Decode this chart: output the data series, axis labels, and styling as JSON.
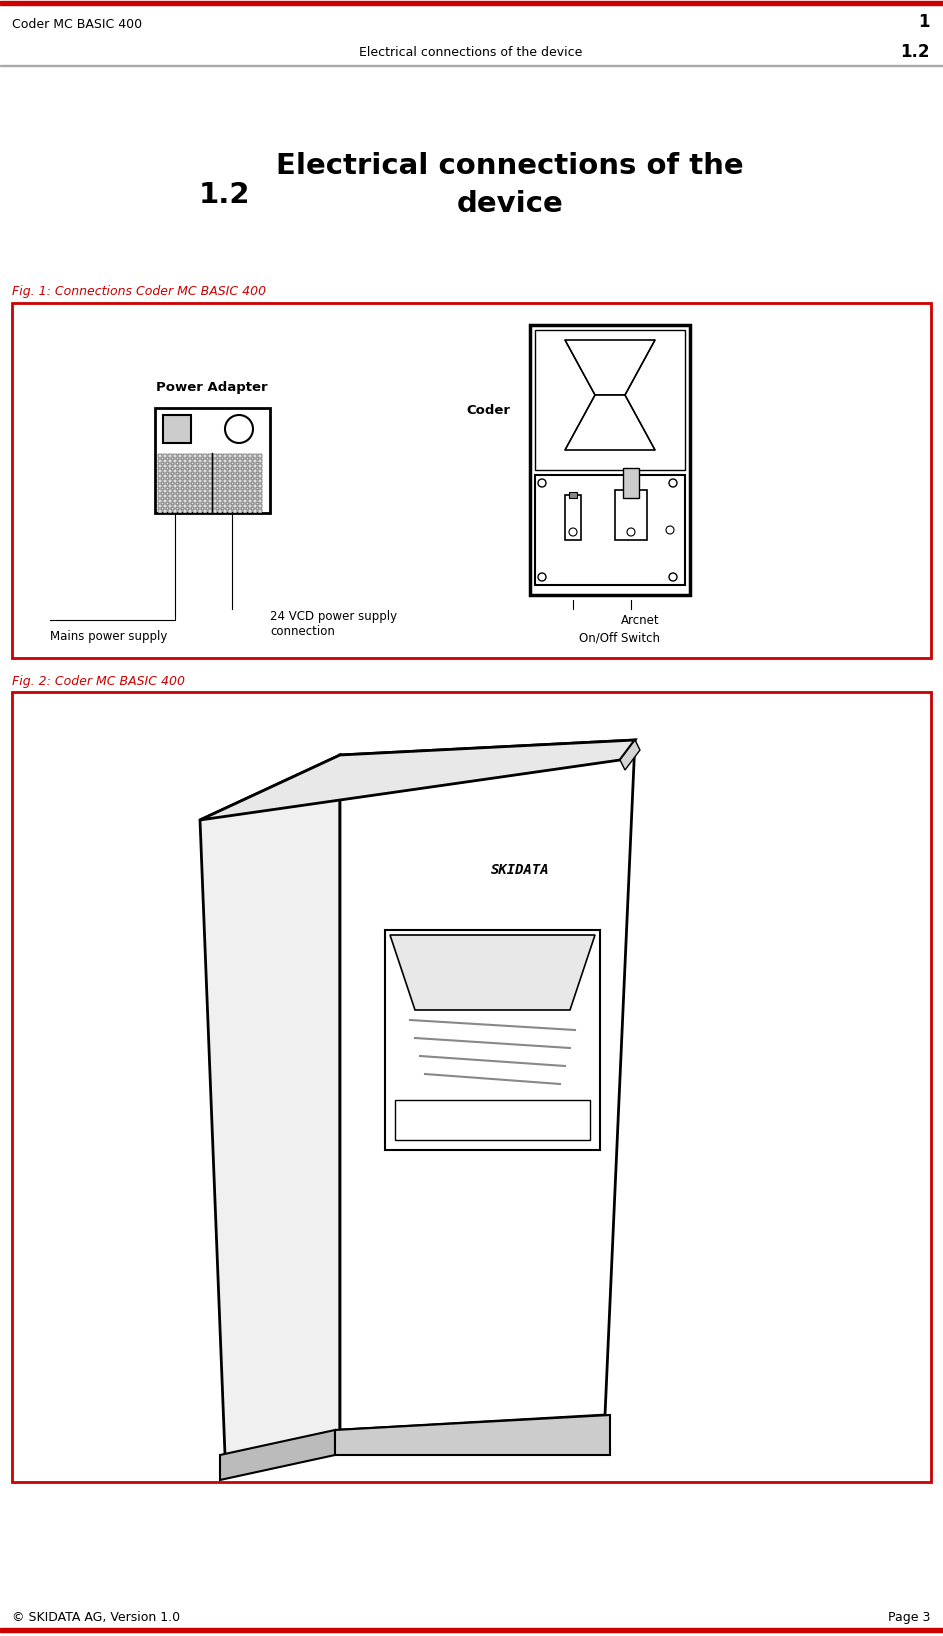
{
  "bg_color": "#ffffff",
  "red_color": "#cc0000",
  "header_line1": "Coder MC BASIC 400",
  "header_num1": "1",
  "header_line2": "Electrical connections of the device",
  "header_num2": "1.2",
  "section_title_num": "1.2",
  "fig1_caption": "Fig. 1: Connections Coder MC BASIC 400",
  "fig2_caption": "Fig. 2: Coder MC BASIC 400",
  "footer_left": "© SKIDATA AG, Version 1.0",
  "footer_right": "Page 3",
  "label_coder": "Coder",
  "label_power_adapter": "Power Adapter",
  "label_mains": "Mains power supply",
  "label_24vcd": "24 VCD power supply\nconnection",
  "label_arcnet": "Arcnet",
  "label_onoff": "On/Off Switch",
  "skidata_text": "SKIDATA"
}
